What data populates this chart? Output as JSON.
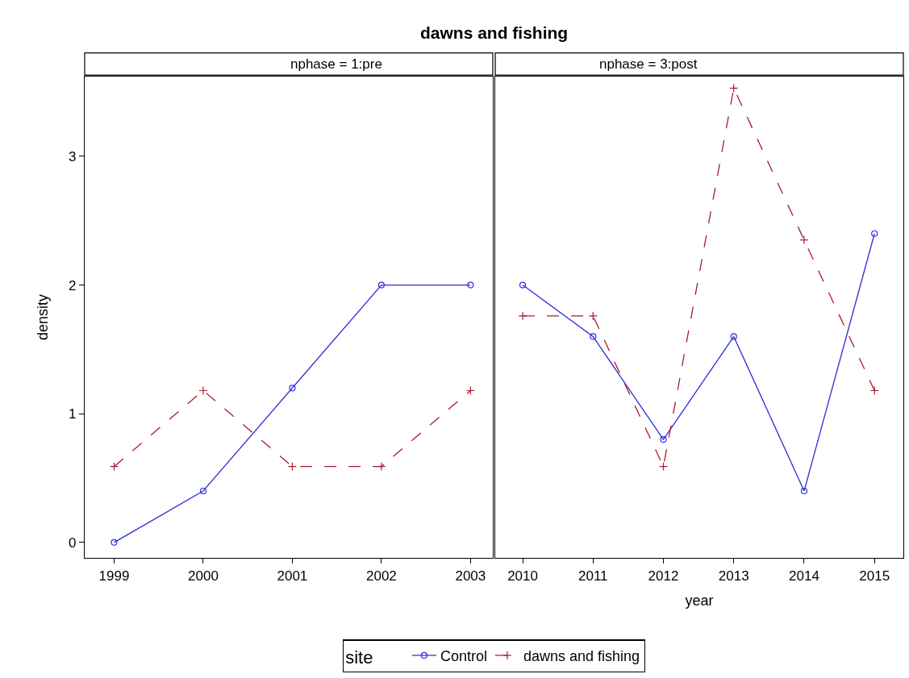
{
  "chart_data": [
    {
      "type": "line",
      "title": "dawns and fishing",
      "subtitle": "nphase = 1:pre",
      "ylabel": "density",
      "legend_title": "site",
      "legend": "bottom",
      "tick_labels": "xy",
      "x": [
        1999,
        2000,
        2001,
        2002,
        2003
      ],
      "xlim": [
        1998.67,
        2003.25
      ],
      "xticks": [
        1999,
        2000,
        2001,
        2002,
        2003
      ],
      "ylim": [
        -0.12,
        3.62
      ],
      "yticks": [
        0,
        1,
        2,
        3
      ],
      "series": [
        {
          "name": "Control",
          "color": "#2b2bd9",
          "marker": "circle",
          "line_style": "solid",
          "values": [
            0,
            0.4,
            1.2,
            2,
            2
          ]
        },
        {
          "name": "dawns and fishing",
          "color": "#a51c30",
          "marker": "cross",
          "line_style": "dashed",
          "values": [
            0.59,
            1.18,
            0.59,
            0.59,
            1.18
          ]
        }
      ]
    },
    {
      "type": "line",
      "subtitle": "nphase = 3:post",
      "xlabel": "year",
      "legend": false,
      "tick_labels": "x",
      "x": [
        2010,
        2011,
        2012,
        2013,
        2014,
        2015
      ],
      "xlim": [
        2009.61,
        2015.41
      ],
      "xticks": [
        2010,
        2011,
        2012,
        2013,
        2014,
        2015
      ],
      "ylim": [
        -0.12,
        3.62
      ],
      "yticks": [
        0,
        1,
        2,
        3
      ],
      "series": [
        {
          "color": "#2b2bd9",
          "marker": "circle",
          "line_style": "solid",
          "values": [
            2,
            1.6,
            0.8,
            1.6,
            0.4,
            2.4
          ]
        },
        {
          "color": "#a51c30",
          "marker": "cross",
          "line_style": "dashed",
          "values": [
            1.76,
            1.76,
            0.59,
            3.53,
            2.35,
            1.18
          ]
        }
      ]
    }
  ]
}
